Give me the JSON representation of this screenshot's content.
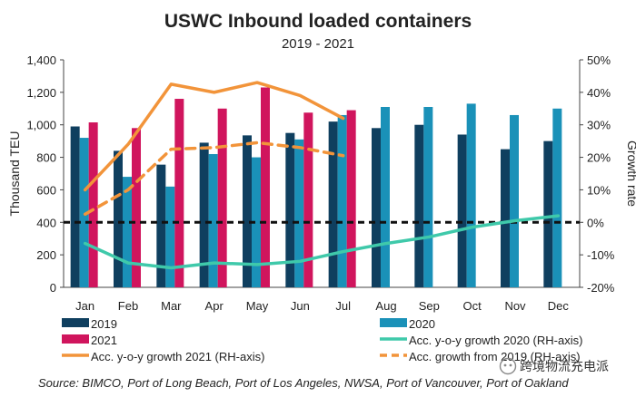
{
  "chart_data": {
    "type": "bar",
    "title": "USWC Inbound loaded containers",
    "subtitle": "2019 - 2021",
    "ylabel": "Thousand TEU",
    "ylabel_right": "Growth rate",
    "ylim": [
      0,
      1400
    ],
    "yticks": [
      "0",
      "200",
      "400",
      "600",
      "800",
      "1,000",
      "1,200",
      "1,400"
    ],
    "ylim_right": [
      -20,
      50
    ],
    "yticks_right": [
      "-20%",
      "-10%",
      "0%",
      "10%",
      "20%",
      "30%",
      "40%",
      "50%"
    ],
    "categories": [
      "Jan",
      "Feb",
      "Mar",
      "Apr",
      "May",
      "Jun",
      "Jul",
      "Aug",
      "Sep",
      "Oct",
      "Nov",
      "Dec"
    ],
    "series": [
      {
        "name": "2019",
        "axis": "left",
        "kind": "bar",
        "color": "#0f3f5f",
        "values": [
          990,
          840,
          755,
          890,
          935,
          950,
          1020,
          980,
          1000,
          940,
          850,
          900
        ]
      },
      {
        "name": "2020",
        "axis": "left",
        "kind": "bar",
        "color": "#1a91b8",
        "values": [
          920,
          680,
          620,
          820,
          800,
          910,
          1060,
          1110,
          1110,
          1130,
          1060,
          1100
        ]
      },
      {
        "name": "2021",
        "axis": "left",
        "kind": "bar",
        "color": "#d0155d",
        "values": [
          1015,
          980,
          1160,
          1100,
          1230,
          1075,
          1090,
          null,
          null,
          null,
          null,
          null
        ]
      },
      {
        "name": "Acc. y-o-y growth 2020 (RH-axis)",
        "axis": "right",
        "kind": "line",
        "style": "solid",
        "color": "#3fc9aa",
        "values": [
          -6.5,
          -12.5,
          -14,
          -12.5,
          -13,
          -12,
          -9,
          -6.5,
          -4.5,
          -1.5,
          0.5,
          2
        ]
      },
      {
        "name": "Acc. y-o-y growth 2021 (RH-axis)",
        "axis": "right",
        "kind": "line",
        "style": "solid",
        "color": "#f2943a",
        "values": [
          10,
          24,
          42.5,
          40,
          43,
          39,
          32,
          null,
          null,
          null,
          null,
          null
        ]
      },
      {
        "name": "Acc. growth from 2019 (RH-axis)",
        "axis": "right",
        "kind": "line",
        "style": "dashed",
        "color": "#f2943a",
        "values": [
          2.5,
          10,
          22.5,
          23,
          24.5,
          23,
          20.5,
          null,
          null,
          null,
          null,
          null
        ]
      }
    ],
    "reference_line": {
      "axis": "right",
      "value": 0,
      "style": "dashed",
      "color": "#111111"
    },
    "grid": false,
    "legend_position": "bottom"
  },
  "source": "Source: BIMCO, Port of Long Beach, Port of Los Angeles, NWSA, Port of Vancouver, Port of Oakland",
  "watermark": "跨境物流充电派"
}
